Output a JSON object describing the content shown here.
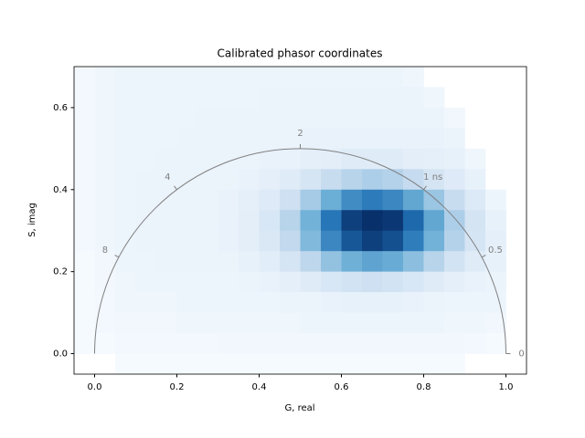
{
  "chart_data": {
    "type": "hist2d",
    "title": "Calibrated phasor coordinates",
    "x_label": "G, real",
    "y_label": "S, imag",
    "xlim": [
      -0.05,
      1.05
    ],
    "ylim": [
      -0.05,
      0.7
    ],
    "xticks": [
      {
        "value": 0,
        "label": "0.0"
      },
      {
        "value": 0.2,
        "label": "0.2"
      },
      {
        "value": 0.4,
        "label": "0.4"
      },
      {
        "value": 0.6,
        "label": "0.6"
      },
      {
        "value": 0.8,
        "label": "0.8"
      },
      {
        "value": 1,
        "label": "1.0"
      }
    ],
    "yticks": [
      {
        "value": 0,
        "label": "0.0"
      },
      {
        "value": 0.2,
        "label": "0.2"
      },
      {
        "value": 0.4,
        "label": "0.4"
      },
      {
        "value": 0.6,
        "label": "0.6"
      }
    ],
    "colormap": [
      "#f7fbff",
      "#c6dbef",
      "#6baed6",
      "#2171b5",
      "#08306b"
    ],
    "x_bins": [
      -0.05,
      0,
      0.05,
      0.1,
      0.15,
      0.2,
      0.25,
      0.3,
      0.35,
      0.4,
      0.45,
      0.5,
      0.55,
      0.6,
      0.65,
      0.7,
      0.75,
      0.8,
      0.85,
      0.9,
      0.95,
      1.0,
      1.05
    ],
    "y_bins": [
      0.7,
      0.65,
      0.6,
      0.55,
      0.5,
      0.45,
      0.4,
      0.35,
      0.3,
      0.25,
      0.2,
      0.15,
      0.1,
      0.05,
      0,
      -0.05
    ],
    "counts": [
      [
        2,
        4,
        5,
        5,
        5,
        5,
        5,
        5,
        5,
        5,
        5,
        5,
        5,
        5,
        5,
        5,
        4,
        0,
        0,
        0,
        0,
        0
      ],
      [
        2,
        4,
        5,
        5,
        5,
        5,
        5,
        5,
        5,
        6,
        6,
        6,
        6,
        6,
        6,
        6,
        6,
        4,
        0,
        0,
        0,
        0
      ],
      [
        2,
        4,
        5,
        5,
        5,
        5,
        6,
        6,
        6,
        6,
        6,
        6,
        6,
        6,
        6,
        6,
        6,
        6,
        3,
        0,
        0,
        0
      ],
      [
        2,
        4,
        5,
        5,
        5,
        6,
        6,
        6,
        6,
        6,
        6,
        7,
        7,
        7,
        7,
        7,
        7,
        7,
        6,
        0,
        0,
        0
      ],
      [
        2,
        4,
        5,
        5,
        6,
        6,
        6,
        6,
        6,
        7,
        7,
        9,
        10,
        12,
        12,
        12,
        10,
        9,
        8,
        4,
        0,
        0
      ],
      [
        2,
        4,
        5,
        6,
        6,
        6,
        6,
        6,
        7,
        9,
        12,
        17,
        24,
        29,
        32,
        30,
        25,
        18,
        13,
        8,
        0,
        0
      ],
      [
        2,
        4,
        5,
        6,
        6,
        6,
        6,
        7,
        9,
        13,
        21,
        34,
        50,
        64,
        71,
        66,
        53,
        37,
        24,
        14,
        5,
        0
      ],
      [
        2,
        4,
        5,
        6,
        6,
        6,
        6,
        7,
        10,
        16,
        29,
        48,
        73,
        94,
        100,
        97,
        78,
        53,
        32,
        18,
        8,
        0
      ],
      [
        2,
        4,
        5,
        6,
        6,
        6,
        6,
        7,
        10,
        15,
        26,
        44,
        66,
        85,
        94,
        88,
        70,
        48,
        30,
        17,
        9,
        0
      ],
      [
        1,
        3,
        5,
        5,
        6,
        6,
        6,
        6,
        8,
        11,
        17,
        27,
        39,
        49,
        54,
        51,
        41,
        29,
        19,
        12,
        8,
        0
      ],
      [
        1,
        3,
        4,
        5,
        5,
        5,
        5,
        5,
        6,
        7,
        9,
        12,
        16,
        19,
        21,
        19,
        16,
        12,
        9,
        7,
        6,
        0
      ],
      [
        1,
        2,
        4,
        4,
        4,
        5,
        5,
        5,
        5,
        5,
        6,
        6,
        7,
        8,
        8,
        8,
        7,
        6,
        5,
        5,
        5,
        0
      ],
      [
        1,
        2,
        3,
        3,
        3,
        4,
        4,
        4,
        4,
        4,
        4,
        5,
        5,
        5,
        5,
        5,
        5,
        5,
        4,
        4,
        3,
        0
      ],
      [
        1,
        1,
        2,
        2,
        2,
        2,
        2,
        3,
        3,
        3,
        3,
        3,
        3,
        3,
        3,
        3,
        3,
        3,
        3,
        2,
        1,
        0
      ],
      [
        0,
        0,
        1,
        1,
        1,
        1,
        1,
        1,
        1,
        1,
        1,
        1,
        1,
        1,
        1,
        1,
        1,
        1,
        1,
        0,
        0,
        0
      ]
    ],
    "semicircle": {
      "center": [
        0.5,
        0
      ],
      "radius": 0.5,
      "color": "#808080"
    },
    "semicircle_ticks": [
      {
        "label": "0",
        "g": 1.0,
        "s": 0.0
      },
      {
        "label": "0.5",
        "g": 0.941,
        "s": 0.235
      },
      {
        "label": "1 ns",
        "g": 0.8,
        "s": 0.4
      },
      {
        "label": "2",
        "g": 0.5,
        "s": 0.5
      },
      {
        "label": "4",
        "g": 0.2,
        "s": 0.4
      },
      {
        "label": "8",
        "g": 0.0588,
        "s": 0.235
      }
    ]
  }
}
